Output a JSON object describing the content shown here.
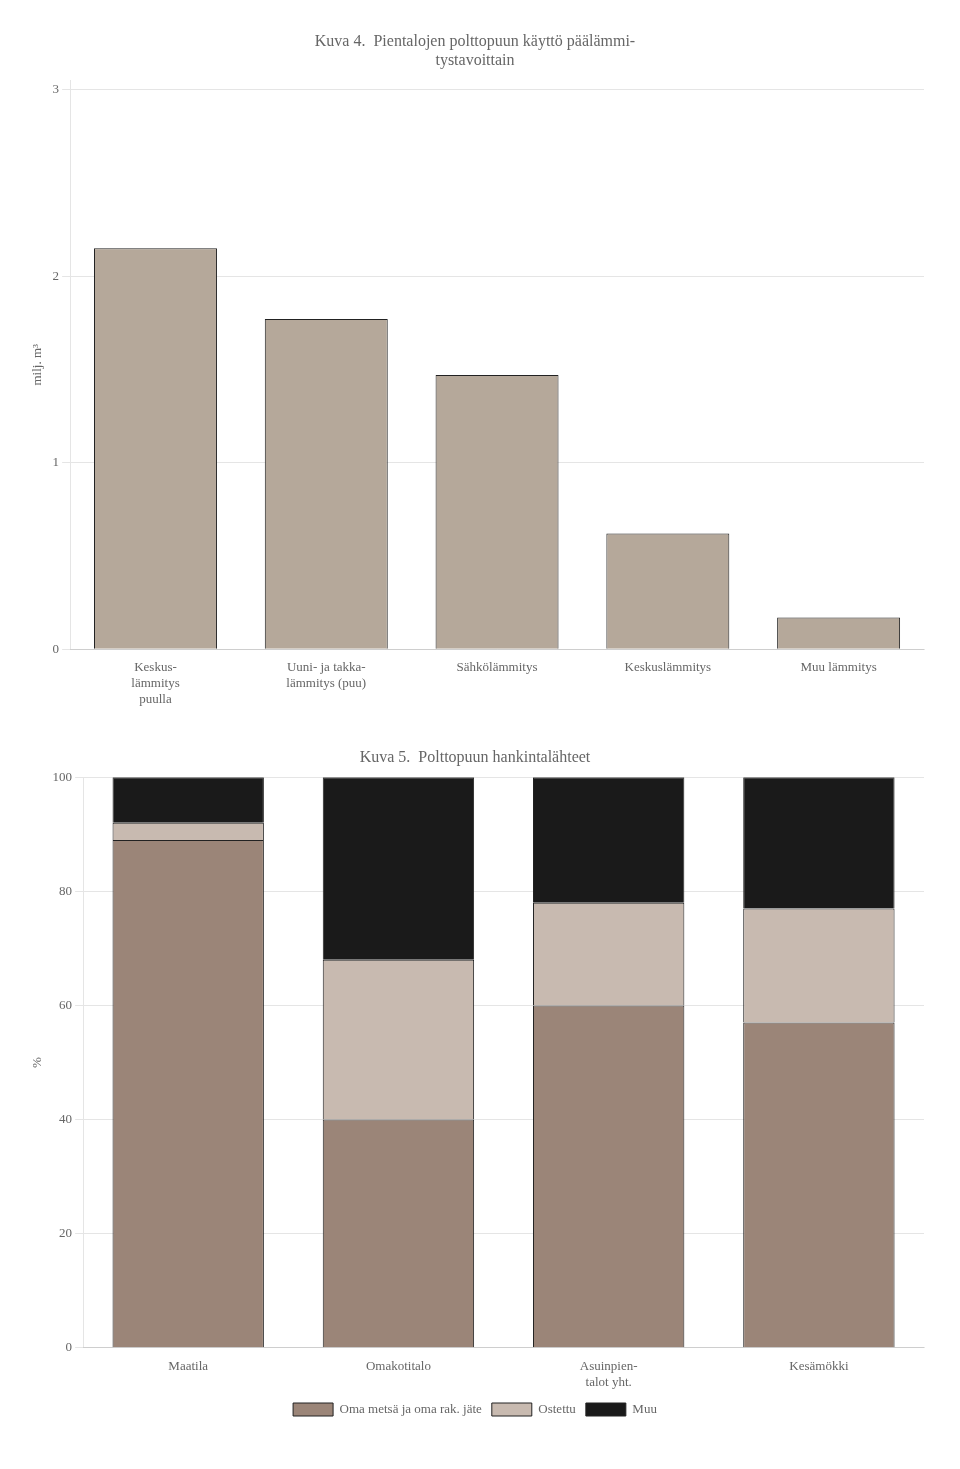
{
  "chart_data": [
    {
      "type": "bar",
      "title": "Kuva 4.  Pientalojen polttopuun käyttö päälämmi-\ntystavoittain",
      "categories": [
        "Keskus-\nlämmitys\npuulla",
        "Uuni- ja takka-\nlämmitys (puu)",
        "Sähkölämmitys",
        "Keskuslämmitys",
        "Muu lämmitys"
      ],
      "values": [
        2.15,
        1.77,
        1.47,
        0.62,
        0.17
      ],
      "color": "#b5a89a",
      "ylabel": "milj. m³",
      "ylim": [
        0,
        3.05
      ],
      "yticks": [
        0,
        1,
        2,
        3
      ],
      "grid": true
    },
    {
      "type": "bar",
      "stacked": true,
      "title": "Kuva 5.  Polttopuun hankintalähteet",
      "categories": [
        "Maatila",
        "Omakotitalo",
        "Asuinpien-\ntalot yht.",
        "Kesämökki"
      ],
      "series": [
        {
          "name": "Oma metsä ja\noma rak. jäte",
          "color": "#9b8578",
          "values": [
            89,
            40,
            60,
            57
          ]
        },
        {
          "name": "Ostettu",
          "color": "#c8bab0",
          "values": [
            3,
            28,
            18,
            20
          ]
        },
        {
          "name": "Muu",
          "color": "#1a1a1a",
          "values": [
            8,
            32,
            22,
            23
          ]
        }
      ],
      "ylabel": "%",
      "ylim": [
        0,
        100
      ],
      "yticks": [
        0,
        20,
        40,
        60,
        80,
        100
      ],
      "grid": true,
      "legend": "bottom"
    }
  ]
}
